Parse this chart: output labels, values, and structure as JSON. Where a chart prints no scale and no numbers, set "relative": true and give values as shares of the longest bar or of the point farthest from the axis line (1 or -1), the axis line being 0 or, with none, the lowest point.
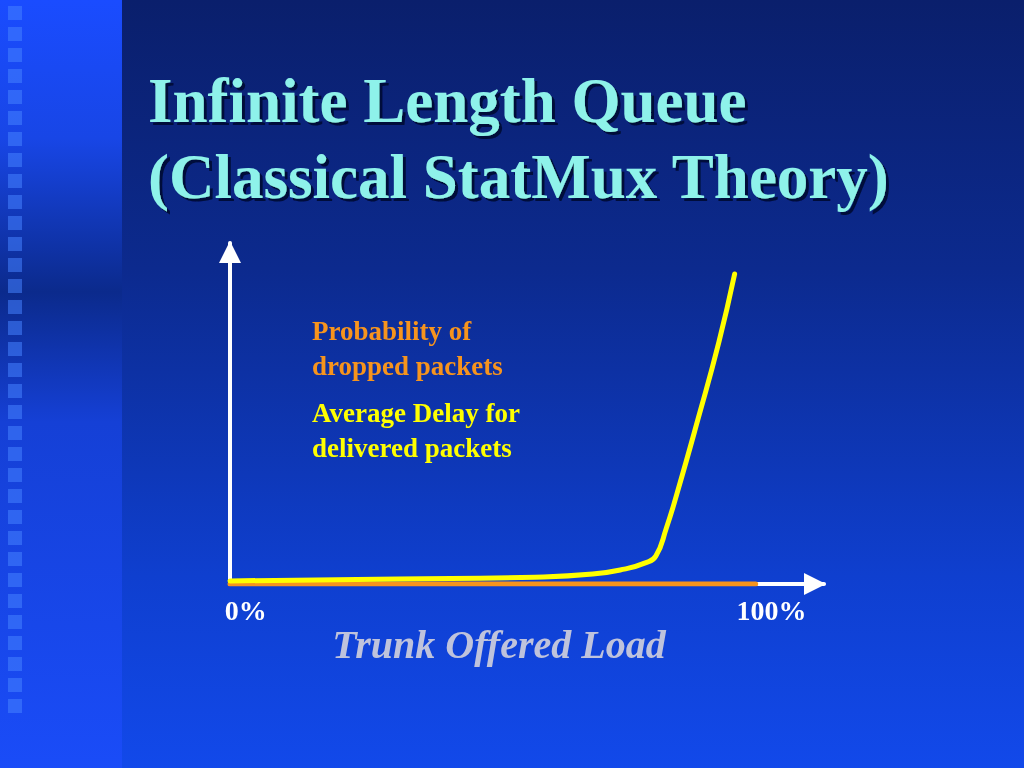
{
  "chart_data": {
    "type": "line",
    "title": "Infinite Length Queue (Classical StatMux Theory)",
    "xlabel": "Trunk Offered Load",
    "relative": true,
    "xlim": [
      -3,
      110
    ],
    "xticks": [
      {
        "value": 0,
        "label": "0%"
      },
      {
        "value": 100,
        "label": "100%"
      }
    ],
    "series": [
      {
        "name": "Probability of dropped packets",
        "color": "#f7941d",
        "x": [
          -3,
          97
        ],
        "values": [
          0,
          0
        ]
      },
      {
        "name": "Average Delay for delivered packets",
        "color": "#ffff00",
        "x": [
          -3,
          29,
          55,
          66,
          72,
          76,
          78,
          80,
          82,
          86,
          90,
          93
        ],
        "values": [
          0.01,
          0.016,
          0.022,
          0.032,
          0.048,
          0.068,
          0.09,
          0.18,
          0.29,
          0.53,
          0.78,
          1
        ]
      }
    ],
    "grid": false,
    "legend": "top left",
    "marker": "none"
  }
}
